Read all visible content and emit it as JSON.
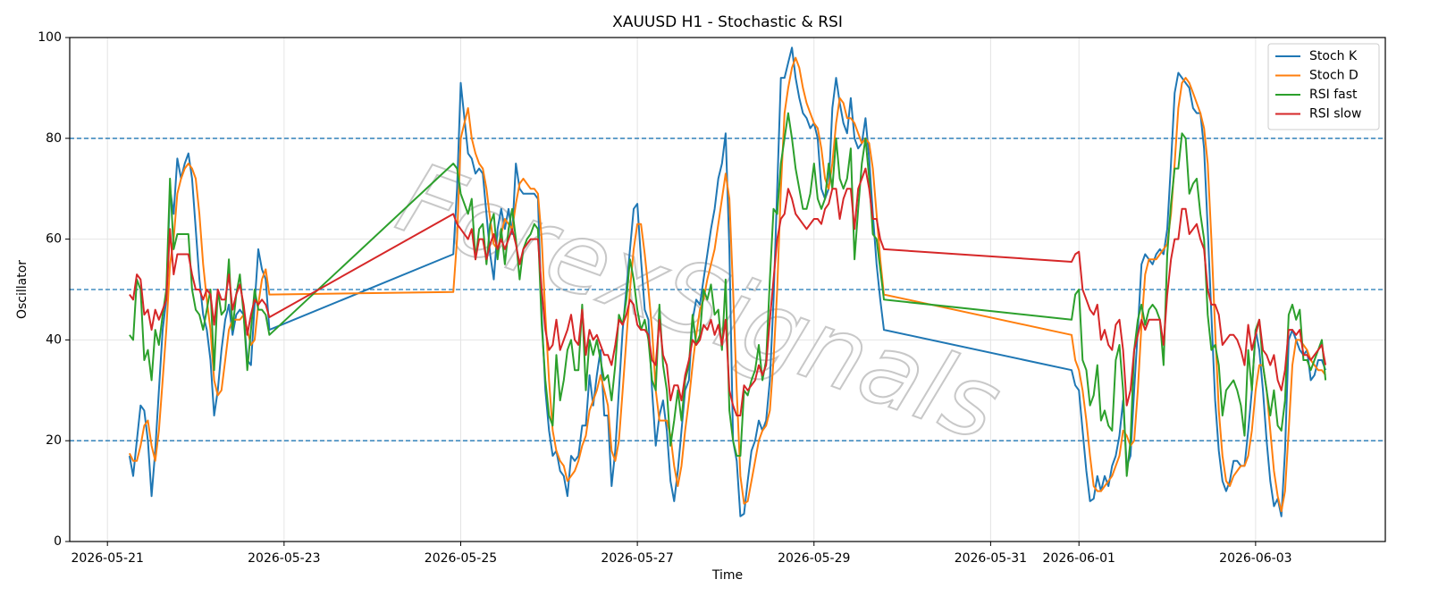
{
  "chart_data": {
    "type": "line",
    "title": "XAUUSD H1 - Stochastic & RSI",
    "x_label": "Time",
    "y_label": "Oscillator",
    "watermark": "ForexSignals",
    "x": [
      "2026-05-21 06:00",
      "2026-05-21 07:00",
      "2026-05-21 08:00",
      "2026-05-21 09:00",
      "2026-05-21 10:00",
      "2026-05-21 11:00",
      "2026-05-21 12:00",
      "2026-05-21 13:00",
      "2026-05-21 14:00",
      "2026-05-21 15:00",
      "2026-05-21 16:00",
      "2026-05-21 17:00",
      "2026-05-21 18:00",
      "2026-05-21 19:00",
      "2026-05-21 20:00",
      "2026-05-21 21:00",
      "2026-05-21 22:00",
      "2026-05-21 23:00",
      "2026-05-22 00:00",
      "2026-05-22 01:00",
      "2026-05-22 02:00",
      "2026-05-22 03:00",
      "2026-05-22 04:00",
      "2026-05-22 05:00",
      "2026-05-22 06:00",
      "2026-05-22 07:00",
      "2026-05-22 08:00",
      "2026-05-22 09:00",
      "2026-05-22 10:00",
      "2026-05-22 11:00",
      "2026-05-22 12:00",
      "2026-05-22 13:00",
      "2026-05-22 14:00",
      "2026-05-22 15:00",
      "2026-05-22 16:00",
      "2026-05-22 17:00",
      "2026-05-22 18:00",
      "2026-05-22 19:00",
      "2026-05-22 20:00",
      "2026-05-24 22:00",
      "2026-05-24 23:00",
      "2026-05-25 00:00",
      "2026-05-25 01:00",
      "2026-05-25 02:00",
      "2026-05-25 03:00",
      "2026-05-25 04:00",
      "2026-05-25 05:00",
      "2026-05-25 06:00",
      "2026-05-25 07:00",
      "2026-05-25 08:00",
      "2026-05-25 09:00",
      "2026-05-25 10:00",
      "2026-05-25 11:00",
      "2026-05-25 12:00",
      "2026-05-25 13:00",
      "2026-05-25 14:00",
      "2026-05-25 15:00",
      "2026-05-25 16:00",
      "2026-05-25 17:00",
      "2026-05-25 18:00",
      "2026-05-25 19:00",
      "2026-05-25 20:00",
      "2026-05-25 21:00",
      "2026-05-25 22:00",
      "2026-05-25 23:00",
      "2026-05-26 00:00",
      "2026-05-26 01:00",
      "2026-05-26 02:00",
      "2026-05-26 03:00",
      "2026-05-26 04:00",
      "2026-05-26 05:00",
      "2026-05-26 06:00",
      "2026-05-26 07:00",
      "2026-05-26 08:00",
      "2026-05-26 09:00",
      "2026-05-26 10:00",
      "2026-05-26 11:00",
      "2026-05-26 12:00",
      "2026-05-26 13:00",
      "2026-05-26 14:00",
      "2026-05-26 15:00",
      "2026-05-26 16:00",
      "2026-05-26 17:00",
      "2026-05-26 18:00",
      "2026-05-26 19:00",
      "2026-05-26 20:00",
      "2026-05-26 21:00",
      "2026-05-26 22:00",
      "2026-05-26 23:00",
      "2026-05-27 00:00",
      "2026-05-27 01:00",
      "2026-05-27 02:00",
      "2026-05-27 03:00",
      "2026-05-27 04:00",
      "2026-05-27 05:00",
      "2026-05-27 06:00",
      "2026-05-27 07:00",
      "2026-05-27 08:00",
      "2026-05-27 09:00",
      "2026-05-27 10:00",
      "2026-05-27 11:00",
      "2026-05-27 12:00",
      "2026-05-27 13:00",
      "2026-05-27 14:00",
      "2026-05-27 15:00",
      "2026-05-27 16:00",
      "2026-05-27 17:00",
      "2026-05-27 18:00",
      "2026-05-27 19:00",
      "2026-05-27 20:00",
      "2026-05-27 21:00",
      "2026-05-27 22:00",
      "2026-05-27 23:00",
      "2026-05-28 00:00",
      "2026-05-28 01:00",
      "2026-05-28 02:00",
      "2026-05-28 03:00",
      "2026-05-28 04:00",
      "2026-05-28 05:00",
      "2026-05-28 06:00",
      "2026-05-28 07:00",
      "2026-05-28 08:00",
      "2026-05-28 09:00",
      "2026-05-28 10:00",
      "2026-05-28 11:00",
      "2026-05-28 12:00",
      "2026-05-28 13:00",
      "2026-05-28 14:00",
      "2026-05-28 15:00",
      "2026-05-28 16:00",
      "2026-05-28 17:00",
      "2026-05-28 18:00",
      "2026-05-28 19:00",
      "2026-05-28 20:00",
      "2026-05-28 21:00",
      "2026-05-28 22:00",
      "2026-05-28 23:00",
      "2026-05-29 00:00",
      "2026-05-29 01:00",
      "2026-05-29 02:00",
      "2026-05-29 03:00",
      "2026-05-29 04:00",
      "2026-05-29 05:00",
      "2026-05-29 06:00",
      "2026-05-29 07:00",
      "2026-05-29 08:00",
      "2026-05-29 09:00",
      "2026-05-29 10:00",
      "2026-05-29 11:00",
      "2026-05-29 12:00",
      "2026-05-29 13:00",
      "2026-05-29 14:00",
      "2026-05-29 15:00",
      "2026-05-29 16:00",
      "2026-05-29 17:00",
      "2026-05-29 18:00",
      "2026-05-29 19:00",
      "2026-05-31 22:00",
      "2026-05-31 23:00",
      "2026-06-01 00:00",
      "2026-06-01 01:00",
      "2026-06-01 02:00",
      "2026-06-01 03:00",
      "2026-06-01 04:00",
      "2026-06-01 05:00",
      "2026-06-01 06:00",
      "2026-06-01 07:00",
      "2026-06-01 08:00",
      "2026-06-01 09:00",
      "2026-06-01 10:00",
      "2026-06-01 11:00",
      "2026-06-01 12:00",
      "2026-06-01 13:00",
      "2026-06-01 14:00",
      "2026-06-01 15:00",
      "2026-06-01 16:00",
      "2026-06-01 17:00",
      "2026-06-01 18:00",
      "2026-06-01 19:00",
      "2026-06-01 20:00",
      "2026-06-01 21:00",
      "2026-06-01 22:00",
      "2026-06-01 23:00",
      "2026-06-02 00:00",
      "2026-06-02 01:00",
      "2026-06-02 02:00",
      "2026-06-02 03:00",
      "2026-06-02 04:00",
      "2026-06-02 05:00",
      "2026-06-02 06:00",
      "2026-06-02 07:00",
      "2026-06-02 08:00",
      "2026-06-02 09:00",
      "2026-06-02 10:00",
      "2026-06-02 11:00",
      "2026-06-02 12:00",
      "2026-06-02 13:00",
      "2026-06-02 14:00",
      "2026-06-02 15:00",
      "2026-06-02 16:00",
      "2026-06-02 17:00",
      "2026-06-02 18:00",
      "2026-06-02 19:00",
      "2026-06-02 20:00",
      "2026-06-02 21:00",
      "2026-06-02 22:00",
      "2026-06-02 23:00",
      "2026-06-03 00:00",
      "2026-06-03 01:00",
      "2026-06-03 02:00",
      "2026-06-03 03:00",
      "2026-06-03 04:00",
      "2026-06-03 05:00",
      "2026-06-03 06:00",
      "2026-06-03 07:00",
      "2026-06-03 08:00",
      "2026-06-03 09:00",
      "2026-06-03 10:00",
      "2026-06-03 11:00",
      "2026-06-03 12:00",
      "2026-06-03 13:00",
      "2026-06-03 14:00",
      "2026-06-03 15:00",
      "2026-06-03 16:00",
      "2026-06-03 17:00",
      "2026-06-03 18:00",
      "2026-06-03 19:00"
    ],
    "series": [
      {
        "name": "Stoch K",
        "color": "#1f77b4",
        "values": [
          17,
          13,
          20,
          27,
          26,
          20,
          9,
          18,
          30,
          42,
          48,
          70,
          65,
          76,
          72,
          75,
          77,
          72,
          62,
          52,
          45,
          42,
          36,
          25,
          30,
          38,
          44,
          47,
          41,
          45,
          46,
          45,
          36,
          35,
          47,
          58,
          54,
          52,
          42,
          57,
          70,
          91,
          84,
          77,
          76,
          73,
          74,
          73,
          65,
          57,
          52,
          62,
          66,
          62,
          66,
          61,
          75,
          70,
          69,
          69,
          69,
          69,
          68,
          45,
          30,
          22,
          17,
          18,
          14,
          13,
          9,
          17,
          16,
          17,
          23,
          23,
          33,
          27,
          33,
          38,
          25,
          25,
          11,
          18,
          30,
          42,
          50,
          58,
          66,
          67,
          56,
          46,
          44,
          30,
          19,
          25,
          28,
          22,
          12,
          8,
          14,
          22,
          30,
          32,
          44,
          48,
          47,
          52,
          57,
          62,
          66,
          72,
          75,
          81,
          58,
          20,
          16,
          5,
          5.5,
          12,
          18,
          20,
          24,
          22,
          24,
          32,
          48,
          70,
          92,
          92,
          95,
          98,
          92,
          88,
          85,
          84,
          82,
          83,
          80,
          70,
          68,
          70,
          86,
          92,
          87,
          83,
          81,
          88,
          80,
          78,
          79,
          84,
          76,
          65,
          55,
          48,
          42,
          34,
          31,
          30,
          22,
          14,
          8,
          8.5,
          13,
          10,
          13,
          11,
          15,
          17,
          21,
          28,
          15,
          17,
          30,
          42,
          55,
          57,
          56,
          55,
          57,
          58,
          57,
          62,
          75,
          89,
          93,
          92,
          91,
          90,
          86,
          85,
          85,
          78,
          62,
          45,
          28,
          18,
          12,
          10,
          12,
          16,
          16,
          15,
          15,
          22,
          30,
          42,
          38,
          30,
          20,
          12,
          7,
          8.5,
          5,
          18,
          40,
          42,
          40,
          38,
          37,
          38,
          32,
          33,
          36,
          36,
          34
        ]
      },
      {
        "name": "Stoch D",
        "color": "#ff7f0e",
        "values": [
          17.5,
          16,
          16,
          19,
          23,
          24,
          19,
          16,
          22,
          32,
          42,
          55,
          60,
          69,
          72,
          74,
          75,
          74,
          72,
          65,
          55,
          48,
          42,
          32,
          29,
          30,
          36,
          42,
          44,
          44,
          44,
          45,
          42,
          39,
          40,
          47,
          52,
          54,
          49,
          49.5,
          60,
          80,
          83,
          86,
          80,
          77,
          75,
          74,
          70,
          64,
          59,
          58,
          61,
          64,
          63,
          62,
          67,
          71,
          72,
          71,
          70,
          70,
          69,
          60,
          45,
          32,
          22,
          18,
          16,
          15,
          12,
          13,
          14,
          16,
          19,
          21,
          26,
          28,
          30,
          33,
          30,
          27,
          18,
          16,
          20,
          30,
          40,
          50,
          58,
          63,
          63,
          57,
          50,
          42,
          30,
          24,
          24,
          24,
          21,
          15,
          11,
          15,
          22,
          28,
          35,
          41,
          46,
          48,
          52,
          55,
          58,
          63,
          68,
          73,
          68,
          50,
          30,
          13,
          7.5,
          8,
          12,
          16,
          20,
          22,
          23,
          26,
          36,
          50,
          70,
          85,
          90,
          94,
          96,
          94,
          90,
          87,
          85,
          83,
          82,
          78,
          72,
          70,
          75,
          83,
          88,
          87,
          84,
          84,
          83,
          81,
          79,
          80,
          79,
          74,
          65,
          56,
          49,
          41,
          36,
          34,
          30,
          24,
          17,
          11,
          10,
          10,
          11,
          12,
          13,
          15,
          17,
          22,
          21,
          19,
          20,
          30,
          43,
          53,
          56,
          56,
          56,
          57,
          58,
          59,
          65,
          75,
          86,
          91,
          92,
          91,
          89,
          87,
          85,
          82,
          75,
          60,
          42,
          26,
          17,
          12,
          11,
          13,
          14,
          15,
          15,
          17,
          22,
          30,
          35,
          35,
          30,
          22,
          14,
          9,
          6,
          10,
          22,
          35,
          40,
          40,
          39,
          38,
          36,
          35,
          34,
          34,
          33
        ]
      },
      {
        "name": "RSI fast",
        "color": "#2ca02c",
        "values": [
          41,
          40,
          52,
          50,
          36,
          38,
          32,
          42,
          39,
          45,
          50,
          72,
          58,
          61,
          61,
          61,
          61,
          50,
          46,
          45,
          42,
          46,
          50,
          34,
          50,
          45,
          46,
          56,
          42,
          49,
          53,
          45,
          34,
          42,
          50,
          46,
          46,
          45,
          41,
          75,
          74,
          69,
          67,
          65,
          68,
          56,
          62,
          63,
          55,
          63,
          65,
          56,
          62,
          55,
          62,
          66,
          60,
          52,
          58,
          60,
          61,
          63,
          62,
          43,
          32,
          25,
          23,
          37,
          28,
          32,
          38,
          40,
          34,
          34,
          47,
          30,
          40,
          37,
          40,
          36,
          32,
          33,
          28,
          35,
          45,
          43,
          48,
          56,
          52,
          46,
          42,
          44,
          40,
          32,
          30,
          47,
          35,
          30,
          19,
          24,
          30,
          24,
          32,
          35,
          45,
          39,
          41,
          50,
          48,
          51,
          45,
          46,
          38,
          52,
          26,
          20,
          17,
          17,
          30,
          29,
          32,
          34,
          39,
          32,
          36,
          52,
          66,
          65,
          75,
          80,
          85,
          80,
          74,
          70,
          66,
          66,
          69,
          75,
          68,
          66,
          68,
          75,
          70,
          80,
          72,
          70,
          72,
          78,
          56,
          66,
          75,
          80,
          72,
          61,
          60,
          54,
          48,
          44,
          49,
          50,
          36,
          34,
          27,
          29,
          35,
          24,
          26,
          23,
          22,
          36,
          39,
          30,
          13,
          20,
          38,
          44,
          47,
          43,
          46,
          47,
          46,
          44,
          35,
          57,
          67,
          74,
          74,
          81,
          80,
          69,
          71,
          72,
          65,
          60,
          45,
          38,
          39,
          35,
          25,
          30,
          31,
          32,
          30,
          27,
          21,
          38,
          30,
          42,
          44,
          35,
          30,
          25,
          30,
          23,
          22,
          28,
          45,
          47,
          44,
          46,
          36,
          36,
          34,
          36,
          38,
          40,
          32
        ]
      },
      {
        "name": "RSI slow",
        "color": "#d62728",
        "values": [
          49,
          48,
          53,
          52,
          45,
          46,
          42,
          46,
          44,
          46,
          48,
          62,
          53,
          57,
          57,
          57,
          57,
          53,
          50,
          50,
          48,
          50,
          49,
          43,
          50,
          48,
          48,
          53,
          46,
          49,
          51,
          47,
          41,
          45,
          48,
          47,
          48,
          47,
          44.5,
          65,
          63,
          62,
          61,
          60,
          62,
          56,
          60,
          60,
          56,
          59,
          61,
          58,
          60,
          58,
          60,
          62,
          59,
          55,
          58,
          59,
          60,
          60,
          60,
          50,
          42,
          38,
          39,
          44,
          38,
          40,
          42,
          45,
          40,
          39,
          46,
          37,
          42,
          40,
          41,
          39,
          37,
          37,
          35,
          39,
          44,
          43,
          45,
          48,
          47,
          43,
          42,
          42,
          41,
          36,
          35,
          44,
          37,
          35,
          28,
          31,
          31,
          28,
          33,
          36,
          40,
          39,
          40,
          43,
          42,
          44,
          41,
          43,
          39,
          44,
          30,
          27,
          25,
          25,
          31,
          30,
          31,
          32,
          35,
          33,
          35,
          44,
          52,
          60,
          64,
          65,
          70,
          68,
          65,
          64,
          63,
          62,
          63,
          64,
          64,
          63,
          66,
          67,
          70,
          70,
          64,
          68,
          70,
          70,
          62,
          70,
          72,
          74,
          70,
          64,
          64,
          60,
          58,
          55.5,
          57,
          57.5,
          50,
          48,
          46,
          45,
          47,
          40,
          42,
          39,
          38,
          43,
          44,
          38,
          27,
          30,
          38,
          41,
          44,
          42,
          44,
          44,
          44,
          44,
          39,
          49,
          56,
          60,
          60,
          66,
          66,
          61,
          62,
          63,
          60,
          58,
          50,
          47,
          47,
          45,
          39,
          40,
          41,
          41,
          40,
          38,
          35,
          43,
          38,
          41,
          44,
          38,
          37,
          35,
          37,
          32,
          30,
          34,
          42,
          42,
          41,
          42,
          37,
          37,
          36,
          37,
          38,
          39,
          35
        ]
      }
    ],
    "reference_lines": [
      20,
      50,
      80
    ],
    "reference_color": "#1f77b4",
    "xlim": [
      "2026-05-20 13:45",
      "2026-06-04 11:15"
    ],
    "xticks": [
      "2026-05-21",
      "2026-05-23",
      "2026-05-25",
      "2026-05-27",
      "2026-05-29",
      "2026-05-31",
      "2026-06-01",
      "2026-06-03"
    ],
    "ylim": [
      0,
      100
    ],
    "yticks": [
      0,
      20,
      40,
      60,
      80,
      100
    ],
    "grid": true,
    "legend": "upper right"
  }
}
